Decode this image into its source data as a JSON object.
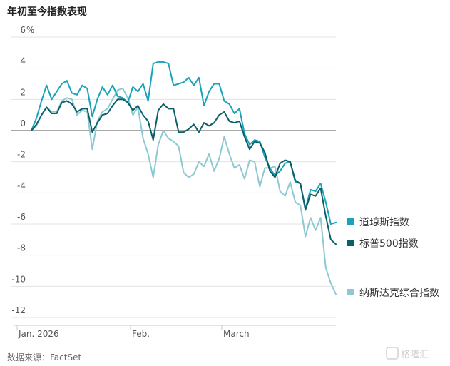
{
  "chart_data": {
    "type": "line",
    "title": "年初至今指数表现",
    "y_unit": "%",
    "ylim": [
      -12,
      6
    ],
    "yticks": [
      6,
      4,
      2,
      0,
      -2,
      -4,
      -6,
      -8,
      -10,
      -12
    ],
    "x_labels": [
      "Jan. 2026",
      "Feb.",
      "March"
    ],
    "grid": true,
    "legend_position": "right",
    "source": "数据来源：FactSet",
    "watermark": "格隆汇",
    "series": [
      {
        "name": "道琼斯指数",
        "color": "#1aa3b8",
        "values": [
          0,
          0.8,
          1.9,
          2.9,
          2.0,
          2.5,
          3.0,
          3.2,
          2.4,
          2.3,
          2.9,
          2.7,
          0.9,
          2.0,
          2.8,
          2.3,
          2.9,
          2.2,
          2.1,
          1.8,
          2.8,
          2.5,
          3.0,
          1.9,
          4.3,
          4.4,
          4.4,
          4.3,
          2.9,
          3.0,
          3.1,
          3.4,
          2.9,
          3.4,
          1.6,
          2.5,
          3.0,
          3.0,
          1.9,
          1.7,
          1.1,
          1.4,
          -0.2,
          -0.9,
          -0.6,
          -0.7,
          -1.7,
          -2.4,
          -2.9,
          -2.6,
          -2.1,
          -2.0,
          -3.3,
          -3.4,
          -5.0,
          -3.8,
          -3.9,
          -3.4,
          -4.6,
          -6.0,
          -5.9
        ]
      },
      {
        "name": "标普500指数",
        "color": "#0b5f66",
        "values": [
          0,
          0.4,
          1.0,
          1.5,
          1.1,
          1.1,
          1.8,
          1.9,
          1.7,
          1.2,
          1.4,
          1.4,
          -0.1,
          0.5,
          1.0,
          1.1,
          1.6,
          2.0,
          2.0,
          1.8,
          1.3,
          1.6,
          1.0,
          0.6,
          -0.6,
          1.3,
          1.7,
          1.4,
          1.4,
          -0.1,
          -0.1,
          0.1,
          0.4,
          -0.1,
          0.5,
          0.3,
          0.5,
          1.0,
          1.2,
          0.6,
          0.5,
          0.6,
          -0.4,
          -1.2,
          -0.7,
          -0.8,
          -1.4,
          -2.6,
          -3.0,
          -2.1,
          -1.9,
          -2.0,
          -3.2,
          -3.4,
          -5.1,
          -4.1,
          -4.2,
          -3.7,
          -5.5,
          -7.0,
          -7.3
        ]
      },
      {
        "name": "纳斯达克综合指数",
        "color": "#8dc9d2",
        "values": [
          0,
          0.3,
          1.0,
          1.5,
          1.2,
          1.2,
          1.9,
          2.1,
          2.0,
          1.0,
          1.3,
          1.2,
          -1.2,
          0.6,
          1.2,
          1.4,
          2.0,
          2.6,
          2.7,
          2.1,
          1.0,
          1.5,
          -0.5,
          -1.5,
          -3.0,
          -0.9,
          0.0,
          -0.5,
          -0.7,
          -1.0,
          -2.7,
          -3.0,
          -2.8,
          -2.0,
          -2.3,
          -1.5,
          -2.6,
          -1.8,
          -0.4,
          -1.5,
          -2.4,
          -2.2,
          -3.1,
          -1.9,
          -2.0,
          -3.6,
          -2.4,
          -2.4,
          -2.3,
          -3.9,
          -4.2,
          -3.3,
          -4.6,
          -4.8,
          -6.8,
          -5.6,
          -6.4,
          -5.6,
          -8.8,
          -9.8,
          -10.5
        ]
      }
    ]
  }
}
